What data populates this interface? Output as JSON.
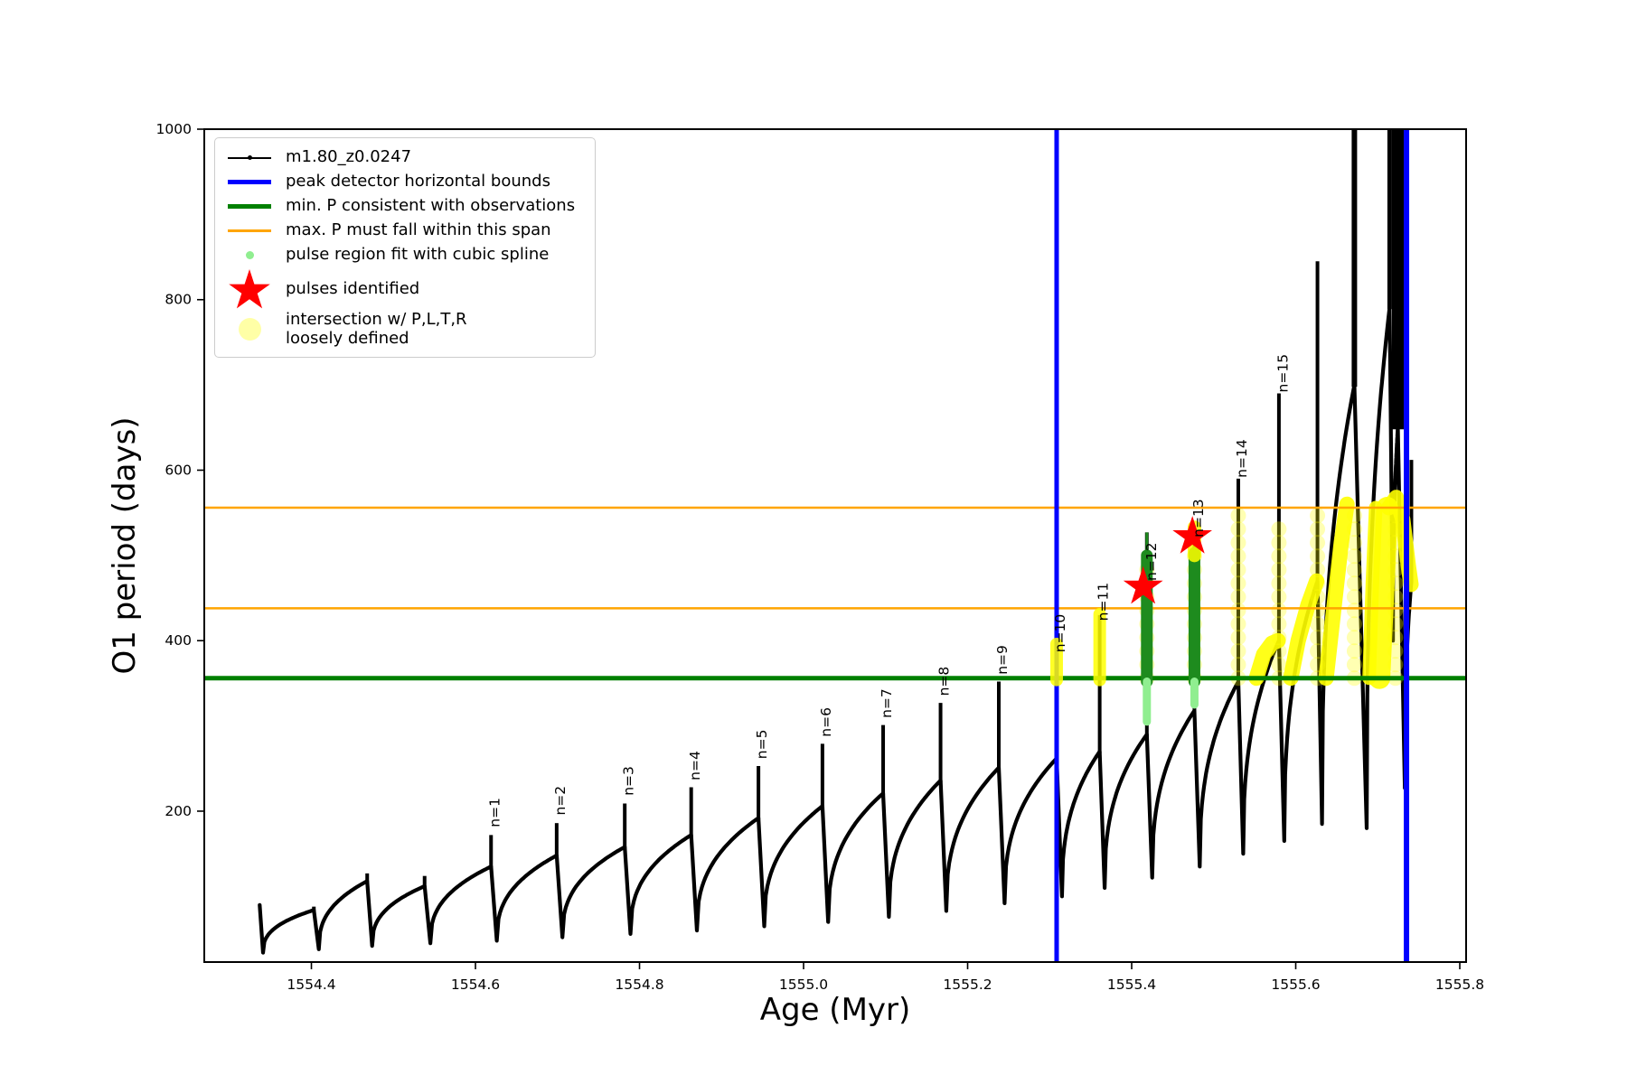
{
  "chart_data": {
    "type": "line",
    "title": "",
    "xlabel": "Age (Myr)",
    "ylabel": "O1 period (days)",
    "xlim": [
      1554.2694,
      1555.8077
    ],
    "ylim": [
      23,
      1000
    ],
    "x_ticks": [
      "1554.4",
      "1554.6",
      "1554.8",
      "1555.0",
      "1555.2",
      "1555.4",
      "1555.6",
      "1555.8"
    ],
    "y_ticks": [
      "200",
      "400",
      "600",
      "800",
      "1000"
    ],
    "grid": false,
    "legend_position": "upper left",
    "colors": {
      "series": "#000000",
      "peak_bounds": "#0000ff",
      "min_p": "#008000",
      "max_p_span": "#ffa500",
      "spline_fit_dark": "#1e8b1e",
      "spline_fit_light": "#90ee90",
      "pulse_star": "#ff0000",
      "intersection_yellow": "#ffff00"
    },
    "legend": [
      {
        "marker": "line-dot",
        "color": "#000000",
        "label": "m1.80_z0.0247"
      },
      {
        "marker": "thick-line",
        "color": "#0000ff",
        "label": "peak detector horizontal bounds"
      },
      {
        "marker": "thick-line",
        "color": "#008000",
        "label": "min. P consistent with observations"
      },
      {
        "marker": "line",
        "color": "#ffa500",
        "label": "max. P must fall within this span"
      },
      {
        "marker": "dot-small",
        "color": "#90ee90",
        "label": "pulse region fit with cubic spline"
      },
      {
        "marker": "star",
        "color": "#ff0000",
        "label": "pulses identified",
        "char": "★"
      },
      {
        "marker": "dot-large",
        "color": "rgba(255,255,0,0.35)",
        "label": "intersection w/ P,L,T,R loosely defined",
        "label_lines": [
          "intersection w/ P,L,T,R",
          "loosely defined"
        ]
      }
    ],
    "hlines": [
      {
        "y": 356,
        "color": "#008000",
        "lw": 5,
        "name": "min P consistent with observations"
      },
      {
        "y": 438,
        "color": "#ffa500",
        "lw": 2.5,
        "name": "max P span lower"
      },
      {
        "y": 556,
        "color": "#ffa500",
        "lw": 2.5,
        "name": "max P span upper"
      }
    ],
    "vlines": [
      {
        "x": 1555.3085,
        "color": "#0000ff",
        "lw": 5,
        "name": "peak detector left bound"
      },
      {
        "x": 1555.735,
        "color": "#0000ff",
        "lw": 6,
        "name": "peak detector right bound"
      }
    ],
    "series": [
      {
        "name": "m1.80_z0.0247",
        "color": "#000000",
        "lead_in": {
          "x": 1554.337,
          "top": 90
        },
        "cycles": [
          {
            "x0": 1554.341,
            "t": 34,
            "x1": 1554.403,
            "c": 84,
            "p": 88,
            "w": 4
          },
          {
            "x0": 1554.409,
            "t": 38,
            "x1": 1554.468,
            "c": 118,
            "p": 127,
            "w": 4
          },
          {
            "x0": 1554.474,
            "t": 42,
            "x1": 1554.538,
            "c": 112,
            "p": 124,
            "w": 4
          },
          {
            "x0": 1554.545,
            "t": 45,
            "x1": 1554.619,
            "c": 135,
            "p": 172,
            "w": 4
          },
          {
            "x0": 1554.626,
            "t": 48,
            "x1": 1554.699,
            "c": 148,
            "p": 186,
            "w": 4
          },
          {
            "x0": 1554.706,
            "t": 52,
            "x1": 1554.782,
            "c": 158,
            "p": 209,
            "w": 4
          },
          {
            "x0": 1554.789,
            "t": 56,
            "x1": 1554.863,
            "c": 172,
            "p": 228,
            "w": 4
          },
          {
            "x0": 1554.87,
            "t": 60,
            "x1": 1554.945,
            "c": 192,
            "p": 253,
            "w": 4
          },
          {
            "x0": 1554.952,
            "t": 65,
            "x1": 1555.023,
            "c": 206,
            "p": 279,
            "w": 4
          },
          {
            "x0": 1555.03,
            "t": 70,
            "x1": 1555.097,
            "c": 221,
            "p": 301,
            "w": 4
          },
          {
            "x0": 1555.104,
            "t": 76,
            "x1": 1555.167,
            "c": 236,
            "p": 327,
            "w": 4
          },
          {
            "x0": 1555.174,
            "t": 83,
            "x1": 1555.238,
            "c": 251,
            "p": 352,
            "w": 4
          },
          {
            "x0": 1555.245,
            "t": 92,
            "x1": 1555.3085,
            "c": 262,
            "p": 395,
            "w": 4
          },
          {
            "x0": 1555.315,
            "t": 100,
            "x1": 1555.361,
            "c": 270,
            "p": 430,
            "w": 4
          },
          {
            "x0": 1555.367,
            "t": 110,
            "x1": 1555.4185,
            "c": 290,
            "p": 527,
            "w": 4
          },
          {
            "x0": 1555.425,
            "t": 122,
            "x1": 1555.4765,
            "c": 318,
            "p": 530,
            "w": 4
          },
          {
            "x0": 1555.483,
            "t": 135,
            "x1": 1555.53,
            "c": 352,
            "p": 590,
            "w": 4
          },
          {
            "x0": 1555.536,
            "t": 150,
            "x1": 1555.5795,
            "c": 400,
            "p": 690,
            "w": 4
          },
          {
            "x0": 1555.586,
            "t": 165,
            "x1": 1555.6265,
            "c": 470,
            "p": 845,
            "w": 4
          },
          {
            "x0": 1555.632,
            "t": 185,
            "x1": 1555.6715,
            "c": 700,
            "p": 1015,
            "w": 6
          },
          {
            "x0": 1555.6865,
            "t": 180,
            "x1": 1555.7145,
            "c": 791,
            "p": 1015,
            "w": 5
          },
          {
            "x0": 1555.7185,
            "t": 400,
            "x1": 1555.7245,
            "c": 650,
            "p": 1015,
            "w": 13
          },
          {
            "x0": 1555.733,
            "t": 227,
            "x1": 1555.741,
            "c": 470,
            "p": 612,
            "w": 4
          }
        ]
      }
    ],
    "pulse_labels": [
      {
        "label": "n=1",
        "x": 1554.6235,
        "y": 178
      },
      {
        "label": "n=2",
        "x": 1554.7035,
        "y": 192
      },
      {
        "label": "n=3",
        "x": 1554.7865,
        "y": 215
      },
      {
        "label": "n=4",
        "x": 1554.8675,
        "y": 233
      },
      {
        "label": "n=5",
        "x": 1554.9495,
        "y": 258
      },
      {
        "label": "n=6",
        "x": 1555.0275,
        "y": 284
      },
      {
        "label": "n=7",
        "x": 1555.1015,
        "y": 306
      },
      {
        "label": "n=8",
        "x": 1555.1715,
        "y": 332
      },
      {
        "label": "n=9",
        "x": 1555.2425,
        "y": 357
      },
      {
        "label": "n=10",
        "x": 1555.313,
        "y": 383
      },
      {
        "label": "n=11",
        "x": 1555.3655,
        "y": 420
      },
      {
        "label": "n=12",
        "x": 1555.4245,
        "y": 467
      },
      {
        "label": "n=13",
        "x": 1555.4815,
        "y": 518
      },
      {
        "label": "n=14",
        "x": 1555.5345,
        "y": 588
      },
      {
        "label": "n=15",
        "x": 1555.5845,
        "y": 688
      }
    ],
    "pulses_identified": [
      {
        "x": 1555.414,
        "y": 463
      },
      {
        "x": 1555.474,
        "y": 522
      }
    ],
    "spline_columns": [
      {
        "x": 1555.4185,
        "y0": 352,
        "y1": 500,
        "w": 13,
        "tip": 527
      },
      {
        "x": 1555.4765,
        "y0": 352,
        "y1": 503,
        "w": 13,
        "tip": null
      }
    ],
    "spline_columns_light": [
      {
        "x": 1555.4185,
        "y0": 305,
        "y1": 352,
        "w": 9
      },
      {
        "x": 1555.4765,
        "y0": 325,
        "y1": 352,
        "w": 9
      }
    ],
    "intersection_blobs": [
      {
        "x": 1555.3085,
        "y0": 354,
        "y1": 396,
        "w": 14
      },
      {
        "x": 1555.361,
        "y0": 354,
        "y1": 431,
        "w": 14
      },
      {
        "x": 1555.4765,
        "y0": 500,
        "y1": 533,
        "w": 15
      }
    ],
    "intersection_circle_columns": [
      {
        "x": 1555.4185,
        "y0": 356,
        "y1": 498
      },
      {
        "x": 1555.4765,
        "y0": 356,
        "y1": 500
      },
      {
        "x": 1555.53,
        "y0": 356,
        "y1": 552
      },
      {
        "x": 1555.5795,
        "y0": 356,
        "y1": 540
      },
      {
        "x": 1555.6265,
        "y0": 356,
        "y1": 552
      },
      {
        "x": 1555.6715,
        "y0": 356,
        "y1": 552
      },
      {
        "x": 1555.7215,
        "y0": 356,
        "y1": 552
      }
    ],
    "intersection_bands": [
      {
        "w": 17,
        "pts": [
          [
            1555.552,
            356
          ],
          [
            1555.561,
            384
          ],
          [
            1555.571,
            397
          ],
          [
            1555.5785,
            400
          ]
        ]
      },
      {
        "w": 17,
        "pts": [
          [
            1555.594,
            356
          ],
          [
            1555.603,
            400
          ],
          [
            1555.615,
            442
          ],
          [
            1555.6255,
            470
          ]
        ]
      },
      {
        "w": 17,
        "pts": [
          [
            1555.637,
            356
          ],
          [
            1555.6465,
            438
          ],
          [
            1555.6555,
            515
          ],
          [
            1555.6625,
            560
          ]
        ]
      },
      {
        "w": 15,
        "pts": [
          [
            1555.6895,
            356
          ],
          [
            1555.6935,
            470
          ],
          [
            1555.6975,
            556
          ]
        ]
      },
      {
        "w": 24,
        "pts": [
          [
            1555.702,
            356
          ],
          [
            1555.7065,
            450
          ],
          [
            1555.7115,
            556
          ]
        ]
      },
      {
        "w": 17,
        "pts": [
          [
            1555.7135,
            556
          ],
          [
            1555.7225,
            568
          ],
          [
            1555.7305,
            542
          ],
          [
            1555.7375,
            486
          ],
          [
            1555.7405,
            466
          ]
        ]
      }
    ]
  }
}
